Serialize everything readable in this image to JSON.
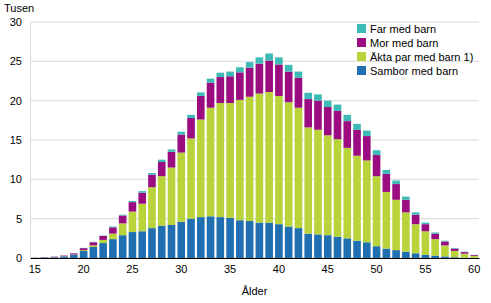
{
  "chart_data": {
    "type": "bar",
    "stacked": true,
    "grid": true,
    "legend": "top-right",
    "ylabel": "Tusen",
    "xlabel": "Ålder",
    "categories": [
      15,
      null,
      null,
      null,
      null,
      20,
      null,
      null,
      null,
      null,
      25,
      null,
      null,
      null,
      null,
      30,
      null,
      null,
      null,
      null,
      35,
      null,
      null,
      null,
      null,
      40,
      null,
      null,
      null,
      null,
      45,
      null,
      null,
      null,
      null,
      50,
      null,
      null,
      null,
      null,
      55,
      null,
      null,
      null,
      null,
      60
    ],
    "ylim": [
      0,
      30
    ],
    "yticks": [
      0,
      5,
      10,
      15,
      20,
      25,
      30
    ],
    "series": [
      {
        "name": "Far med barn",
        "color": "#3dbab6",
        "values": [
          0,
          0,
          0,
          0.01,
          0.02,
          0.03,
          0.05,
          0.05,
          0.1,
          0.1,
          0.15,
          0.2,
          0.2,
          0.3,
          0.3,
          0.35,
          0.4,
          0.45,
          0.5,
          0.55,
          0.6,
          0.65,
          0.7,
          0.8,
          0.9,
          0.9,
          0.85,
          0.8,
          0.8,
          0.8,
          0.8,
          0.8,
          0.8,
          0.75,
          0.7,
          0.6,
          0.5,
          0.45,
          0.4,
          0.3,
          0.2,
          0.15,
          0.1,
          0.08,
          0.05,
          0.03
        ]
      },
      {
        "name": "Mor med barn",
        "color": "#9a0c7f",
        "values": [
          0.02,
          0.04,
          0.05,
          0.08,
          0.15,
          0.25,
          0.4,
          0.5,
          0.8,
          1.0,
          1.2,
          1.4,
          1.6,
          1.8,
          2.0,
          2.3,
          2.6,
          3.0,
          3.2,
          3.3,
          3.4,
          3.5,
          3.7,
          3.8,
          4.0,
          4.0,
          3.9,
          3.8,
          3.6,
          3.7,
          3.6,
          3.6,
          3.4,
          3.3,
          3.1,
          2.7,
          2.3,
          2.0,
          1.6,
          1.2,
          0.9,
          0.7,
          0.5,
          0.3,
          0.2,
          0.1
        ]
      },
      {
        "name": "Äkta par med barn 1)",
        "color": "#b9d43a",
        "values": [
          0.01,
          0.01,
          0.02,
          0.03,
          0.05,
          0.1,
          0.2,
          0.4,
          0.7,
          1.5,
          2.6,
          3.5,
          5.2,
          6.3,
          7.3,
          8.8,
          10.2,
          12.4,
          13.8,
          14.5,
          14.6,
          15.3,
          15.8,
          16.4,
          16.6,
          16.3,
          15.8,
          15.3,
          13.5,
          13.3,
          12.7,
          12.4,
          11.5,
          10.8,
          10.4,
          8.9,
          7.2,
          6.4,
          5.0,
          3.7,
          3.0,
          2.1,
          1.4,
          0.8,
          0.5,
          0.25
        ]
      },
      {
        "name": "Sambor med barn",
        "color": "#1f6fb1",
        "values": [
          0.02,
          0.05,
          0.1,
          0.2,
          0.4,
          0.9,
          1.4,
          1.9,
          2.4,
          2.9,
          3.3,
          3.4,
          3.8,
          4.1,
          4.2,
          4.6,
          5.0,
          5.2,
          5.3,
          5.2,
          5.1,
          4.8,
          4.7,
          4.5,
          4.5,
          4.3,
          4.0,
          3.8,
          3.1,
          3.0,
          2.9,
          2.7,
          2.5,
          2.2,
          2.0,
          1.5,
          1.2,
          1.0,
          0.8,
          0.6,
          0.4,
          0.3,
          0.2,
          0.1,
          0.05,
          0.03
        ]
      }
    ]
  }
}
